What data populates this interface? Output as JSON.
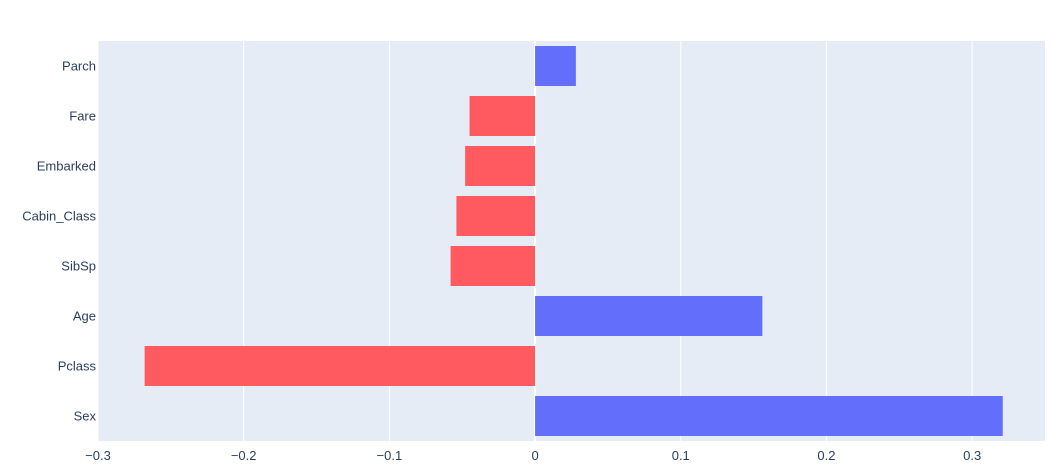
{
  "chart_data": {
    "type": "bar",
    "orientation": "horizontal",
    "title": "",
    "xlabel": "",
    "ylabel": "",
    "categories": [
      "Sex",
      "Pclass",
      "Age",
      "SibSp",
      "Cabin_Class",
      "Embarked",
      "Fare",
      "Parch"
    ],
    "values": [
      0.321,
      -0.268,
      0.156,
      -0.058,
      -0.054,
      -0.048,
      -0.045,
      0.028
    ],
    "xlim": [
      -0.3,
      0.35
    ],
    "xticks": [
      -0.3,
      -0.2,
      -0.1,
      0,
      0.1,
      0.2,
      0.3
    ],
    "xtick_labels": [
      "−0.3",
      "−0.2",
      "−0.1",
      "0",
      "0.1",
      "0.2",
      "0.3"
    ],
    "grid": true,
    "legend": "none",
    "colors": {
      "positive": "#636efa",
      "negative": "#ef553b",
      "negative_display": "#ff5a5f",
      "plot_background": "#e5ecf6",
      "grid": "#ffffff",
      "tick_text": "#2a3f5f"
    }
  }
}
